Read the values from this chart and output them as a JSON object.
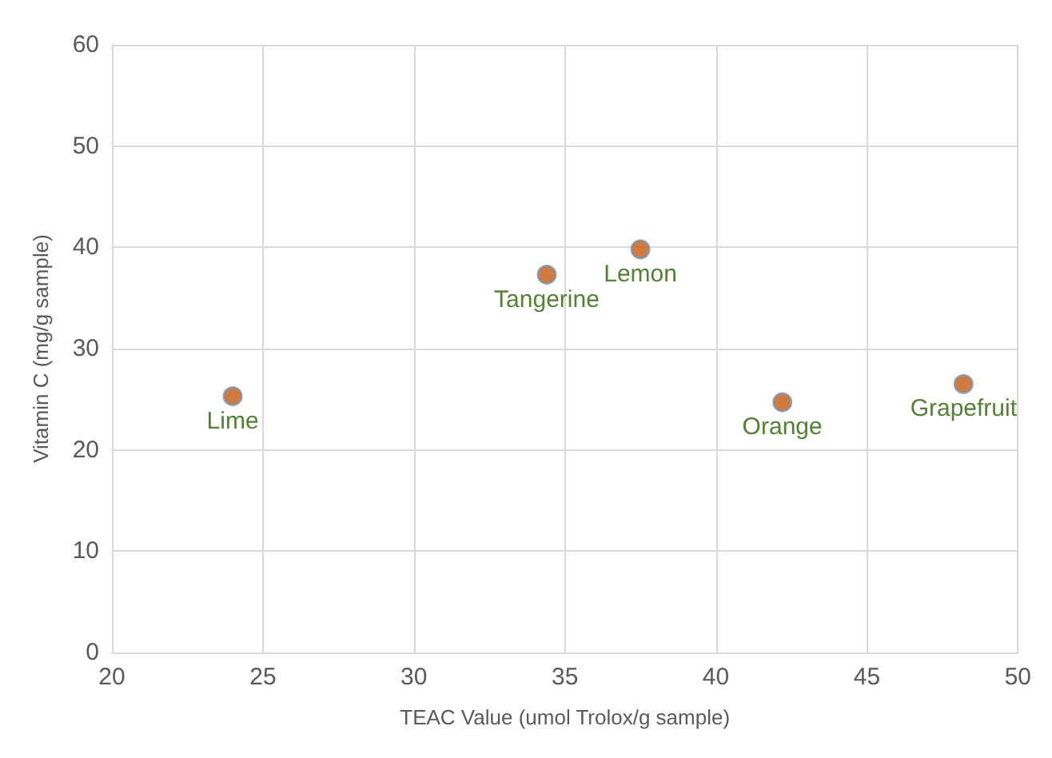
{
  "chart_data": {
    "type": "scatter",
    "xlabel": "TEAC Value (umol Trolox/g sample)",
    "ylabel": "Vitamin C (mg/g sample)",
    "x": [
      24.0,
      34.4,
      37.5,
      42.2,
      48.2
    ],
    "values": [
      25.3,
      37.3,
      39.8,
      24.7,
      26.5
    ],
    "color": "#c55a11",
    "marker": "circle",
    "annotations": [
      {
        "text": "Lime",
        "x": 24.0,
        "y": 25.3
      },
      {
        "text": "Tangerine",
        "x": 34.4,
        "y": 37.3
      },
      {
        "text": "Lemon",
        "x": 37.5,
        "y": 39.8
      },
      {
        "text": "Orange",
        "x": 42.2,
        "y": 24.7
      },
      {
        "text": "Grapefruit",
        "x": 48.2,
        "y": 26.5
      }
    ],
    "xlim": [
      20,
      50
    ],
    "xticks": [
      20,
      25,
      30,
      35,
      40,
      45,
      50
    ],
    "ylim": [
      0,
      60
    ],
    "yticks": [
      0,
      10,
      20,
      30,
      40,
      50,
      60
    ],
    "grid": true
  }
}
